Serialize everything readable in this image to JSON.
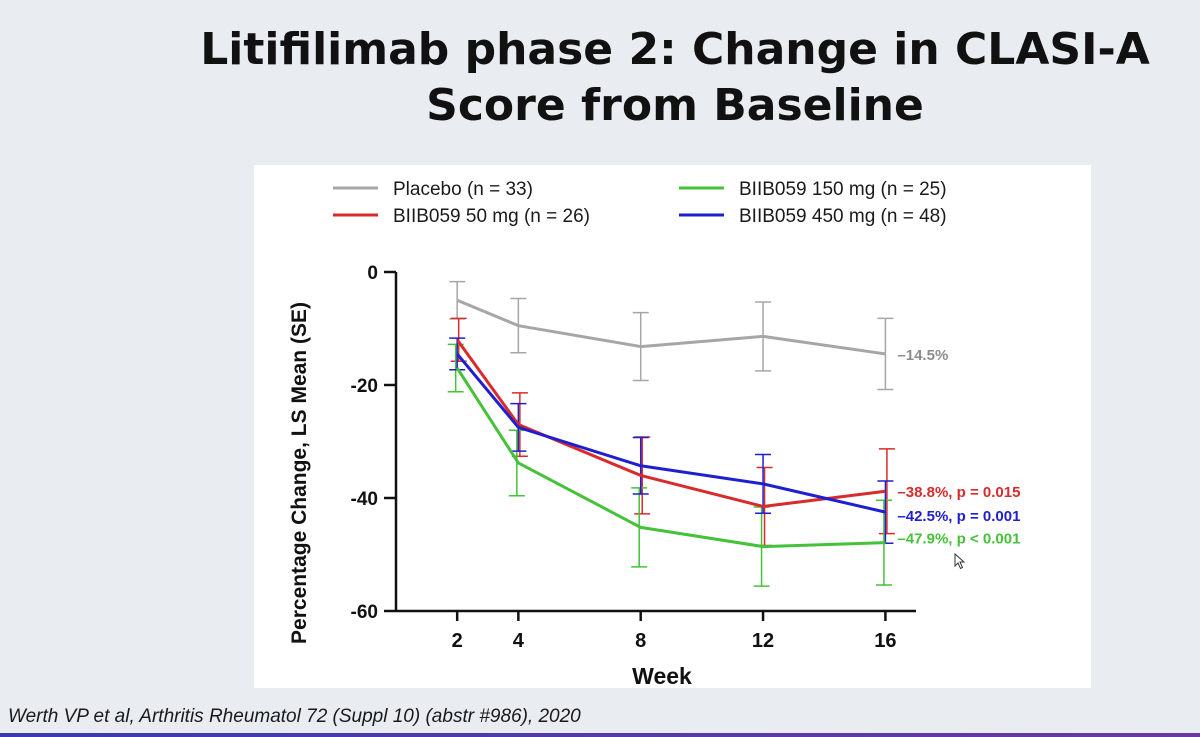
{
  "slide": {
    "title_line1": "Litifilimab  phase 2: Change in CLASI-A",
    "title_line2": "Score from Baseline",
    "citation": "Werth VP et al, Arthritis Rheumatol 72 (Suppl 10) (abstr #986), 2020"
  },
  "chart_data": {
    "type": "line",
    "title": "",
    "xlabel": "Week",
    "ylabel": "Percentage Change, LS Mean (SE)",
    "x": [
      2,
      4,
      8,
      12,
      16
    ],
    "x_ticks": [
      "2",
      "4",
      "8",
      "12",
      "16"
    ],
    "y_ticks": [
      "0",
      "-20",
      "-40",
      "-60"
    ],
    "y_tick_values": [
      0,
      -20,
      -40,
      -60
    ],
    "ylim": [
      -60,
      0
    ],
    "xlim": [
      0,
      17
    ],
    "grid": false,
    "legend_position": "top",
    "series": [
      {
        "name": "Placebo (n = 33)",
        "color": "#a6a6a6",
        "label_color": "#8c8c8c",
        "values": [
          -5.0,
          -9.5,
          -13.2,
          -11.4,
          -14.5
        ],
        "se": [
          3.3,
          4.8,
          6.0,
          6.1,
          6.3
        ],
        "end_label": "–14.5%"
      },
      {
        "name": "BIIB059 50 mg (n = 26)",
        "color": "#d92b2b",
        "label_color": "#d92b2b",
        "values": [
          -12.0,
          -27.0,
          -36.0,
          -41.5,
          -38.8
        ],
        "se": [
          3.8,
          5.6,
          6.8,
          6.9,
          7.5
        ],
        "end_label": "–38.8%, p = 0.015"
      },
      {
        "name": "BIIB059 150 mg (n = 25)",
        "color": "#45c23a",
        "label_color": "#45c23a",
        "values": [
          -17.0,
          -33.8,
          -45.2,
          -48.6,
          -47.9
        ],
        "se": [
          4.2,
          5.8,
          7.0,
          7.0,
          7.5
        ],
        "end_label": "–47.9%, p < 0.001"
      },
      {
        "name": "BIIB059 450 mg (n = 48)",
        "color": "#1f1fd0",
        "label_color": "#1f1fd0",
        "values": [
          -14.5,
          -27.5,
          -34.3,
          -37.5,
          -42.5
        ],
        "se": [
          2.8,
          4.2,
          5.0,
          5.2,
          5.5
        ],
        "end_label": "–42.5%, p = 0.001"
      }
    ]
  }
}
